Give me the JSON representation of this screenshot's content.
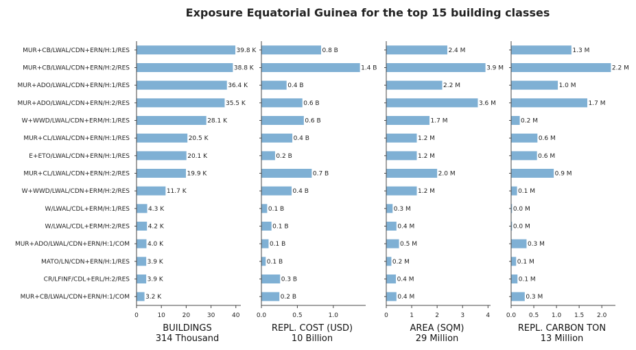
{
  "chart_data": {
    "type": "bar",
    "orientation": "horizontal",
    "title": "Exposure Equatorial Guinea for the top 15 building classes",
    "categories": [
      "MUR+CB/LWAL/CDN+ERN/H:1/RES",
      "MUR+CB/LWAL/CDN+ERN/H:2/RES",
      "MUR+ADO/LWAL/CDN+ERN/H:1/RES",
      "MUR+ADO/LWAL/CDN+ERN/H:2/RES",
      "W+WWD/LWAL/CDN+ERM/H:1/RES",
      "MUR+CL/LWAL/CDN+ERN/H:1/RES",
      "E+ETO/LWAL/CDN+ERN/H:1/RES",
      "MUR+CL/LWAL/CDN+ERN/H:2/RES",
      "W+WWD/LWAL/CDN+ERM/H:2/RES",
      "W/LWAL/CDL+ERM/H:1/RES",
      "W/LWAL/CDL+ERM/H:2/RES",
      "MUR+ADO/LWAL/CDN+ERN/H:1/COM",
      "MATO/LN/CDN+ERN/H:1/RES",
      "CR/LFINF/CDL+ERL/H:2/RES",
      "MUR+CB/LWAL/CDN+ERN/H:1/COM"
    ],
    "panels": [
      {
        "xlabel": "BUILDINGS",
        "subtitle": "314 Thousand",
        "values": [
          39.8,
          38.8,
          36.4,
          35.5,
          28.1,
          20.5,
          20.1,
          19.9,
          11.7,
          4.3,
          4.2,
          4.0,
          3.9,
          3.9,
          3.2
        ],
        "labels": [
          "39.8 K",
          "38.8 K",
          "36.4 K",
          "35.5 K",
          "28.1 K",
          "20.5 K",
          "20.1 K",
          "19.9 K",
          "11.7 K",
          "4.3 K",
          "4.2 K",
          "4.0 K",
          "3.9 K",
          "3.9 K",
          "3.2 K"
        ],
        "xlim": [
          0,
          42
        ],
        "ticks": [
          0,
          10,
          20,
          30,
          40
        ],
        "tick_labels": [
          "0",
          "10",
          "20",
          "30",
          "40"
        ]
      },
      {
        "xlabel": "REPL. COST (USD)",
        "subtitle": "10 Billion",
        "values": [
          0.83,
          1.37,
          0.35,
          0.57,
          0.59,
          0.43,
          0.19,
          0.7,
          0.42,
          0.08,
          0.14,
          0.1,
          0.06,
          0.26,
          0.25
        ],
        "labels": [
          "0.8 B",
          "1.4 B",
          "0.4 B",
          "0.6 B",
          "0.6 B",
          "0.4 B",
          "0.2 B",
          "0.7 B",
          "0.4 B",
          "0.1 B",
          "0.1 B",
          "0.1 B",
          "0.1 B",
          "0.3 B",
          "0.2 B"
        ],
        "xlim": [
          0,
          1.45
        ],
        "ticks": [
          0,
          0.5,
          1.0
        ],
        "tick_labels": [
          "0.0",
          "0.5",
          "1.0"
        ]
      },
      {
        "xlabel": "AREA (SQM)",
        "subtitle": "29 Million",
        "values": [
          2.4,
          3.9,
          2.2,
          3.6,
          1.7,
          1.2,
          1.2,
          2.0,
          1.2,
          0.25,
          0.4,
          0.5,
          0.2,
          0.38,
          0.4
        ],
        "labels": [
          "2.4 M",
          "3.9 M",
          "2.2 M",
          "3.6 M",
          "1.7 M",
          "1.2 M",
          "1.2 M",
          "2.0 M",
          "1.2 M",
          "0.3 M",
          "0.4 M",
          "0.5 M",
          "0.2 M",
          "0.4 M",
          "0.4 M"
        ],
        "xlim": [
          0,
          4.1
        ],
        "ticks": [
          0,
          1,
          2,
          3,
          4
        ],
        "tick_labels": [
          "0",
          "1",
          "2",
          "3",
          "4"
        ]
      },
      {
        "xlabel": "REPL. CARBON TON",
        "subtitle": "13 Million",
        "values": [
          1.33,
          2.2,
          1.03,
          1.68,
          0.19,
          0.58,
          0.57,
          0.94,
          0.13,
          0.02,
          0.02,
          0.34,
          0.11,
          0.14,
          0.3
        ],
        "labels": [
          "1.3 M",
          "2.2 M",
          "1.0 M",
          "1.7 M",
          "0.2 M",
          "0.6 M",
          "0.6 M",
          "0.9 M",
          "0.1 M",
          "0.0 M",
          "0.0 M",
          "0.3 M",
          "0.1 M",
          "0.1 M",
          "0.3 M"
        ],
        "xlim": [
          0,
          2.3
        ],
        "ticks": [
          0,
          0.5,
          1.0,
          1.5,
          2.0
        ],
        "tick_labels": [
          "0.0",
          "0.5",
          "1.0",
          "1.5",
          "2.0"
        ]
      }
    ],
    "colors": {
      "bar": "#7fb0d4",
      "axis": "#444444",
      "text": "#222222"
    },
    "grid": false,
    "legend": "none"
  }
}
